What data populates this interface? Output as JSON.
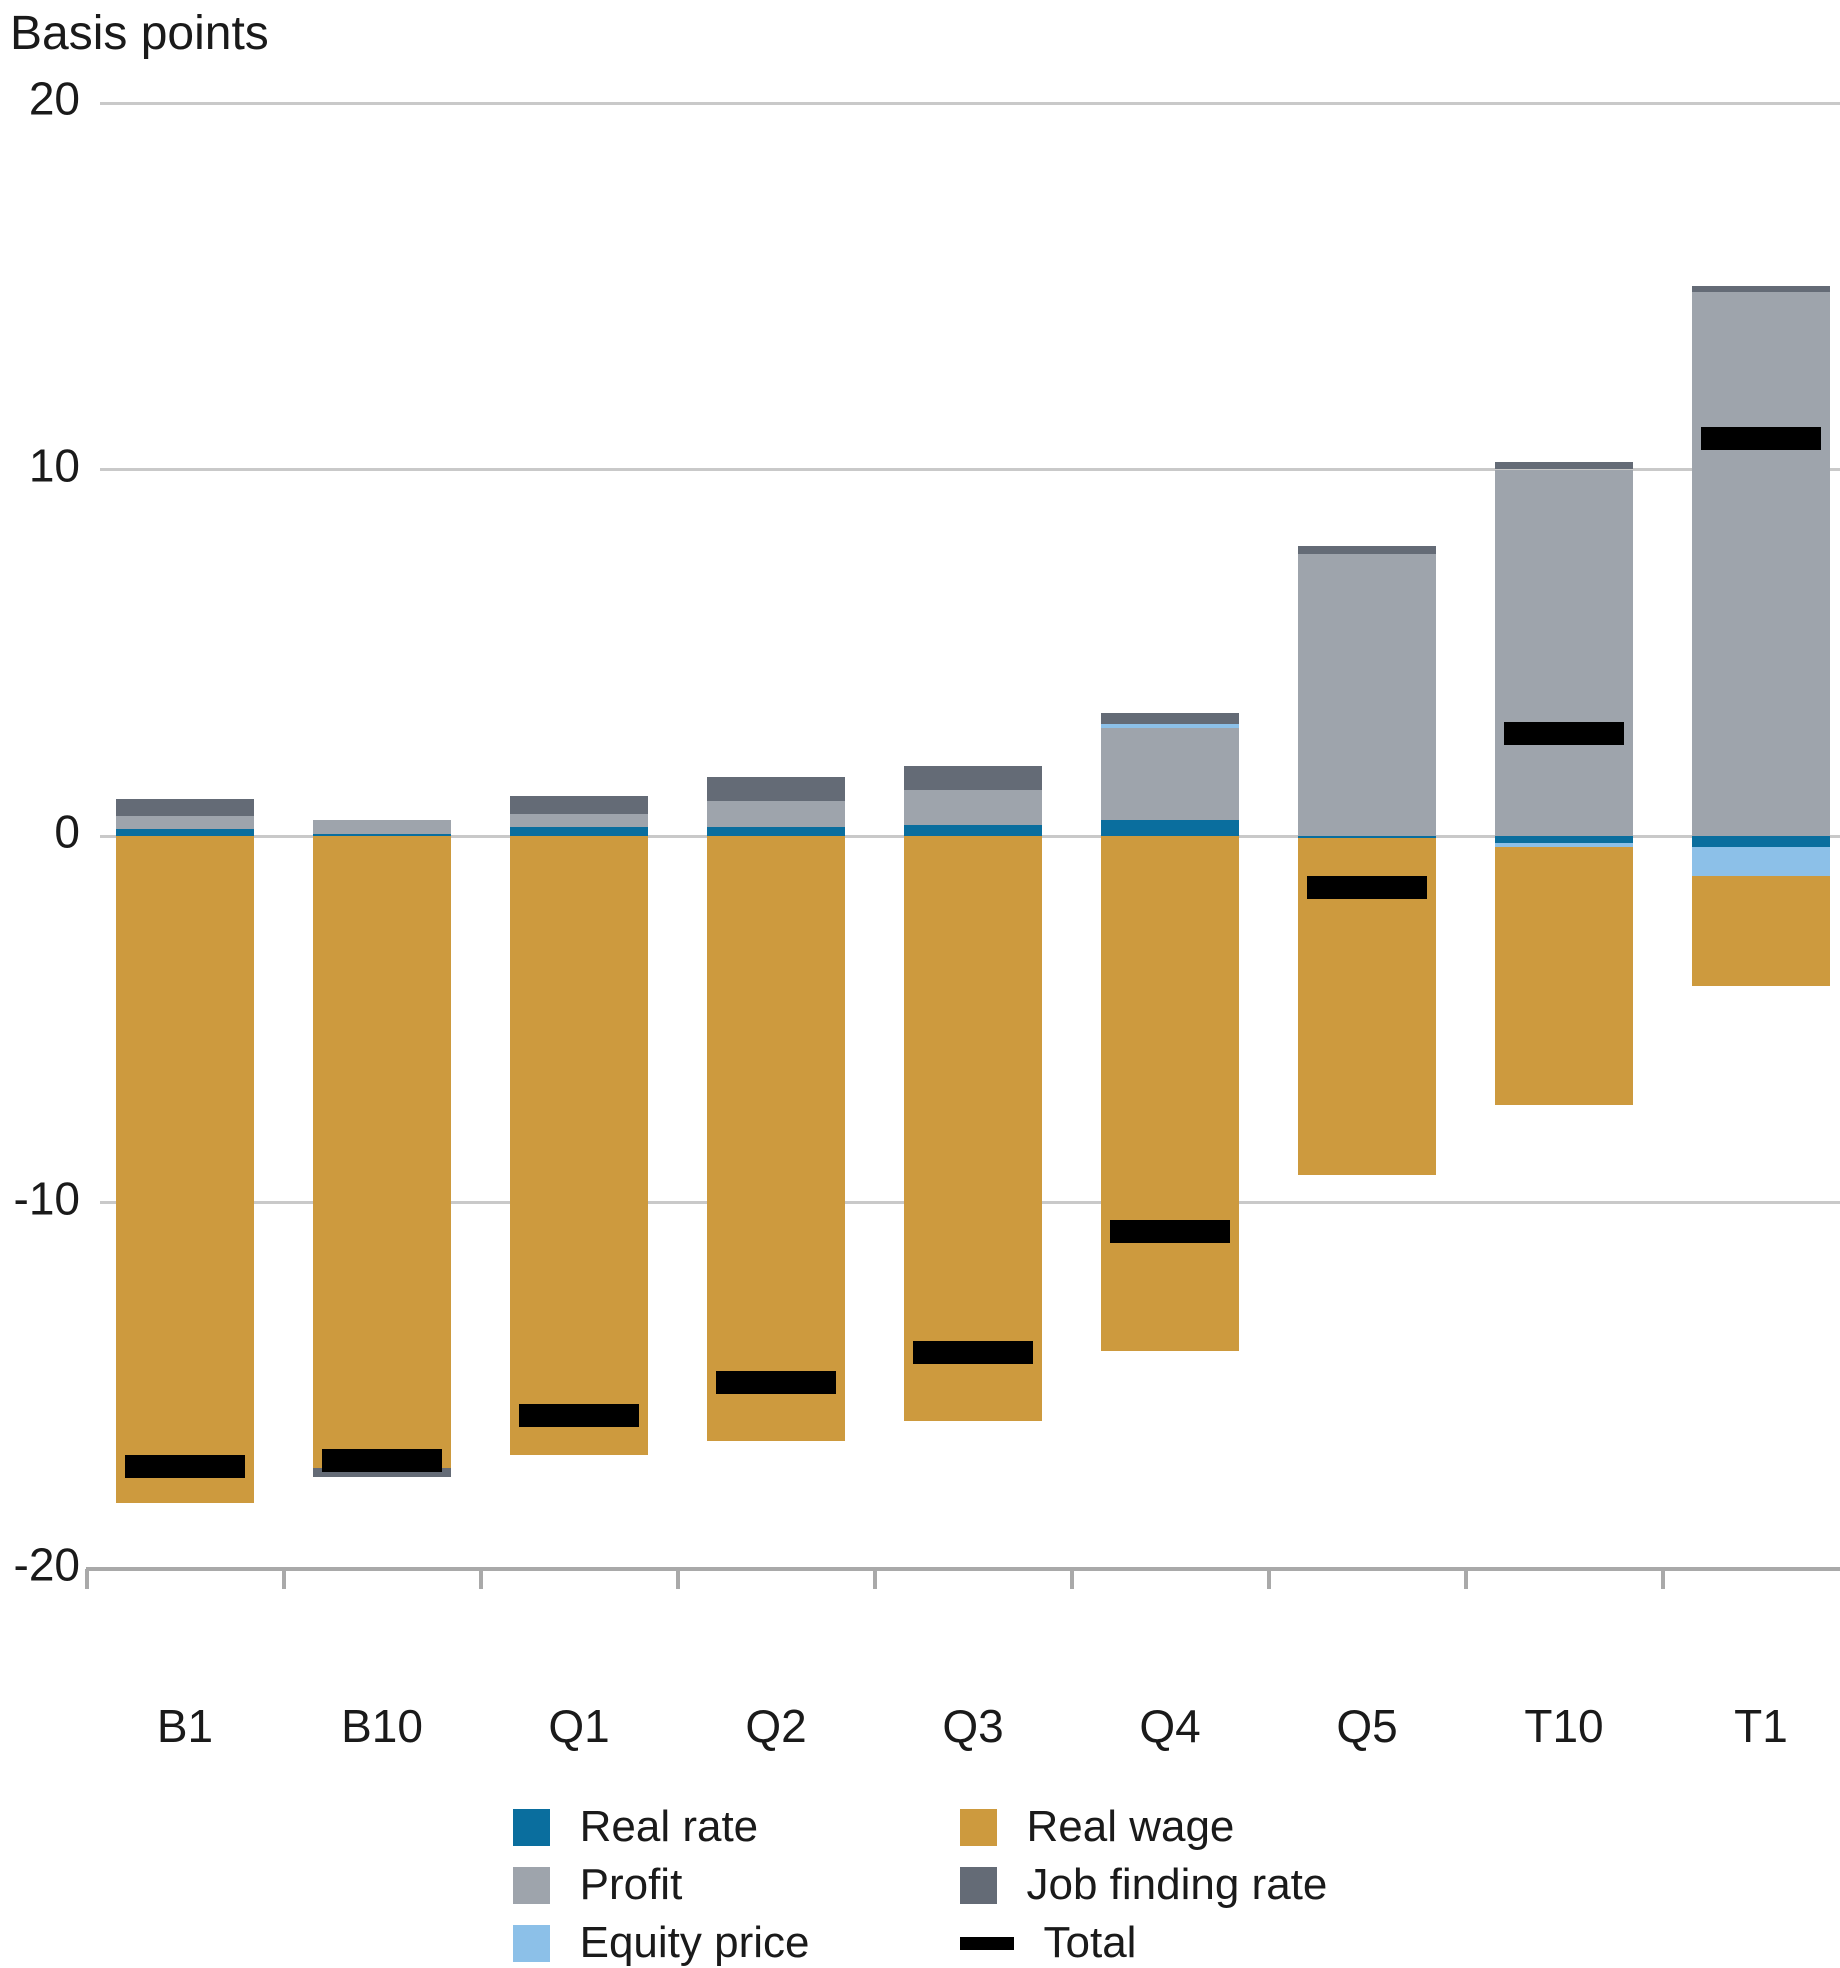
{
  "title": "Basis points",
  "chart_data": {
    "type": "bar",
    "stacked": true,
    "title": "Basis points",
    "xlabel": "",
    "ylabel": "Basis points",
    "ylim": [
      -20,
      20
    ],
    "yticks": [
      20,
      10,
      0,
      -10,
      -20
    ],
    "grid": true,
    "legend_position": "bottom",
    "categories": [
      "B1",
      "B10",
      "Q1",
      "Q2",
      "Q3",
      "Q4",
      "Q5",
      "T10",
      "T1"
    ],
    "series": [
      {
        "id": "real_rate",
        "name": "Real rate",
        "color": "#0a6e9e",
        "values": [
          0.2,
          0.05,
          0.25,
          0.25,
          0.3,
          0.45,
          -0.05,
          -0.2,
          -0.3
        ]
      },
      {
        "id": "profit",
        "name": "Profit",
        "color": "#9ea4ac",
        "values": [
          0.35,
          0.4,
          0.35,
          0.7,
          0.95,
          2.5,
          7.7,
          10.0,
          14.85
        ]
      },
      {
        "id": "equity_price",
        "name": "Equity price",
        "color": "#8cc0e8",
        "values": [
          0,
          0,
          0,
          0,
          0,
          0.1,
          0,
          -0.1,
          -0.8
        ]
      },
      {
        "id": "real_wage",
        "name": "Real wage",
        "color": "#cd9a3e",
        "values": [
          -18.2,
          -17.25,
          -16.9,
          -16.5,
          -15.95,
          -14.05,
          -9.2,
          -7.05,
          -3.0
        ]
      },
      {
        "id": "job_finding_rate",
        "name": "Job finding rate",
        "color": "#646b76",
        "values": [
          0.45,
          -0.25,
          0.5,
          0.65,
          0.65,
          0.3,
          0.2,
          0.2,
          0.15
        ]
      }
    ],
    "totals": {
      "name": "Total",
      "color": "#000000",
      "values": [
        -17.2,
        -17.05,
        -15.8,
        -14.9,
        -14.1,
        -10.8,
        -1.4,
        2.8,
        10.85
      ]
    }
  },
  "legend": {
    "columns": [
      [
        {
          "label": "Real rate",
          "color": "#0a6e9e",
          "shape": "square"
        },
        {
          "label": "Profit",
          "color": "#9ea4ac",
          "shape": "square"
        },
        {
          "label": "Equity price",
          "color": "#8cc0e8",
          "shape": "square"
        }
      ],
      [
        {
          "label": "Real wage",
          "color": "#cd9a3e",
          "shape": "square"
        },
        {
          "label": "Job finding rate",
          "color": "#646b76",
          "shape": "square"
        },
        {
          "label": "Total",
          "color": "#000000",
          "shape": "bar"
        }
      ]
    ]
  }
}
